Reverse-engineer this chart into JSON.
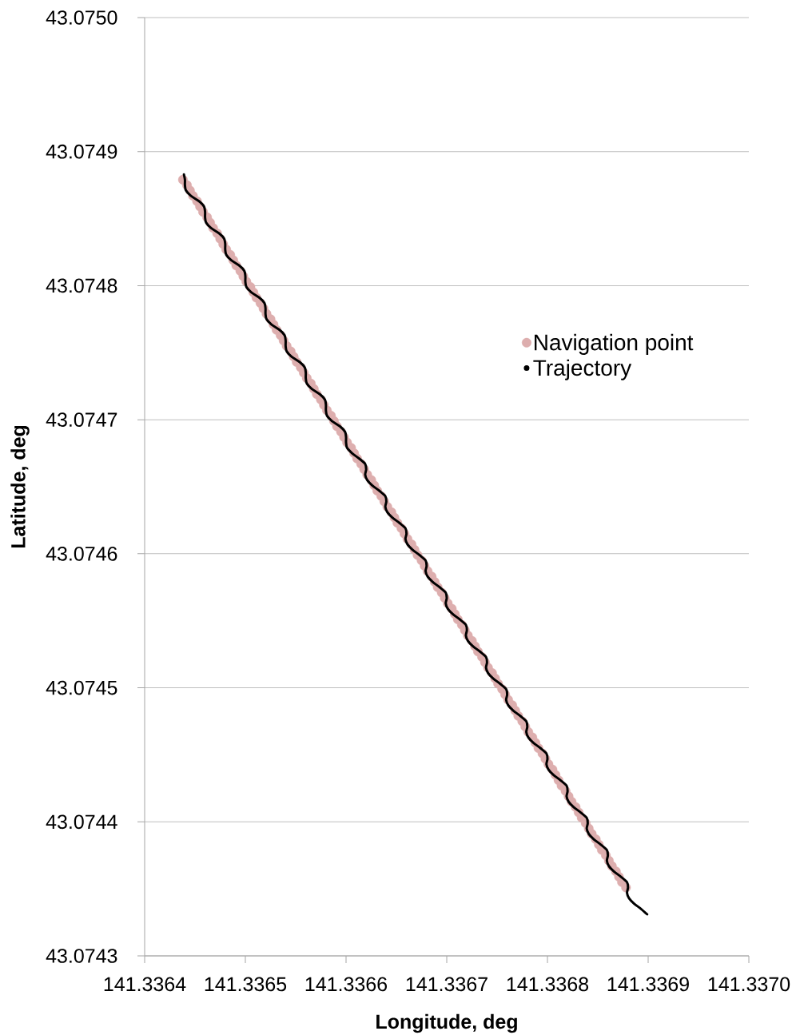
{
  "chart_data": {
    "type": "scatter",
    "xlabel": "Longitude, deg",
    "ylabel": "Latitude, deg",
    "xlim": [
      141.3364,
      141.337
    ],
    "ylim": [
      43.0743,
      43.075
    ],
    "xticks": [
      141.3364,
      141.3365,
      141.3366,
      141.3367,
      141.3368,
      141.3369,
      {
        "value": 141.337,
        "label": "141.3370"
      }
    ],
    "yticks": [
      43.0743,
      43.0744,
      43.0745,
      43.0746,
      43.0747,
      43.0748,
      43.0749,
      {
        "value": 43.075,
        "label": "43.0750"
      }
    ],
    "grid": "y",
    "legend": "right",
    "series": [
      {
        "name": "Navigation point",
        "marker": "circle",
        "color": "#ddaeae",
        "x": [
          141.336438,
          141.336442,
          141.336445,
          141.336448,
          141.336452,
          141.336455,
          141.336458,
          141.336462,
          141.336465,
          141.336468,
          141.336472,
          141.336475,
          141.336478,
          141.336481,
          141.336485,
          141.336488,
          141.336491,
          141.336495,
          141.336498,
          141.336501,
          141.336505,
          141.336508,
          141.336511,
          141.336515,
          141.336518,
          141.336521,
          141.336525,
          141.336528,
          141.336531,
          141.336535,
          141.336538,
          141.336541,
          141.336545,
          141.336548,
          141.336551,
          141.336555,
          141.336558,
          141.336561,
          141.336565,
          141.336568,
          141.336571,
          141.336575,
          141.336578,
          141.336581,
          141.336585,
          141.336588,
          141.336591,
          141.336595,
          141.336598,
          141.336601,
          141.336605,
          141.336608,
          141.336611,
          141.336615,
          141.336618,
          141.336621,
          141.336625,
          141.336628,
          141.336631,
          141.336635,
          141.336638,
          141.336641,
          141.336645,
          141.336648,
          141.336651,
          141.336655,
          141.336658,
          141.336661,
          141.336665,
          141.336668,
          141.336671,
          141.336675,
          141.336678,
          141.336681,
          141.336685,
          141.336688,
          141.336691,
          141.336695,
          141.336698,
          141.336701,
          141.336705,
          141.336708,
          141.336711,
          141.336715,
          141.336718,
          141.336721,
          141.336725,
          141.336728,
          141.336731,
          141.336735,
          141.336738,
          141.336741,
          141.336745,
          141.336748,
          141.336751,
          141.336755,
          141.336758,
          141.336761,
          141.336765,
          141.336768,
          141.336771,
          141.336775,
          141.336778,
          141.336781,
          141.336785,
          141.336788,
          141.336791,
          141.336795,
          141.336798,
          141.336801,
          141.336805,
          141.336808,
          141.336811,
          141.336814,
          141.336818,
          141.336821,
          141.336824,
          141.336828,
          141.336831,
          141.336834,
          141.336838,
          141.336841,
          141.336844,
          141.336848,
          141.336851,
          141.336854,
          141.336858,
          141.336861,
          141.336864,
          141.336868,
          141.336871,
          141.336874,
          141.336878
        ],
        "values": [
          43.074879,
          43.074875,
          43.074871,
          43.074867,
          43.074863,
          43.074859,
          43.074855,
          43.074851,
          43.074847,
          43.074843,
          43.074839,
          43.074835,
          43.074831,
          43.074827,
          43.074823,
          43.074819,
          43.074815,
          43.074811,
          43.074807,
          43.074803,
          43.074799,
          43.074795,
          43.074791,
          43.074787,
          43.074783,
          43.074779,
          43.074775,
          43.074771,
          43.074767,
          43.074763,
          43.074759,
          43.074755,
          43.074751,
          43.074747,
          43.074743,
          43.074739,
          43.074735,
          43.074731,
          43.074727,
          43.074723,
          43.074719,
          43.074715,
          43.074711,
          43.074707,
          43.074703,
          43.074699,
          43.074695,
          43.074691,
          43.074687,
          43.074683,
          43.074679,
          43.074675,
          43.074671,
          43.074667,
          43.074663,
          43.074659,
          43.074655,
          43.074651,
          43.074647,
          43.074643,
          43.074639,
          43.074635,
          43.074631,
          43.074627,
          43.074623,
          43.074619,
          43.074615,
          43.074611,
          43.074607,
          43.074603,
          43.074599,
          43.074595,
          43.074591,
          43.074587,
          43.074583,
          43.074579,
          43.074575,
          43.074571,
          43.074567,
          43.074563,
          43.074559,
          43.074555,
          43.074551,
          43.074547,
          43.074543,
          43.074539,
          43.074535,
          43.074531,
          43.074527,
          43.074523,
          43.074519,
          43.074515,
          43.074511,
          43.074507,
          43.074503,
          43.074499,
          43.074495,
          43.074491,
          43.074487,
          43.074483,
          43.074479,
          43.074475,
          43.074471,
          43.074467,
          43.074463,
          43.074459,
          43.074455,
          43.074451,
          43.074447,
          43.074443,
          43.074439,
          43.074435,
          43.074431,
          43.074427,
          43.074423,
          43.074419,
          43.074415,
          43.074411,
          43.074407,
          43.074403,
          43.074399,
          43.074395,
          43.074391,
          43.074387,
          43.074383,
          43.074379,
          43.074375,
          43.074371,
          43.074367,
          43.074363,
          43.074359,
          43.074355,
          43.074351
        ]
      },
      {
        "name": "Trajectory",
        "type": "line",
        "line_style": "solid",
        "color": "#000000",
        "x": [
          141.336439,
          141.33644,
          141.33644,
          141.336441,
          141.336446,
          141.336454,
          141.336459,
          141.33646,
          141.33646,
          141.336461,
          141.336466,
          141.336474,
          141.336479,
          141.33648,
          141.33648,
          141.336481,
          141.336486,
          141.336494,
          141.336499,
          141.3365,
          141.3365,
          141.336501,
          141.336506,
          141.336514,
          141.336519,
          141.33652,
          141.33652,
          141.336521,
          141.336526,
          141.336534,
          141.336539,
          141.33654,
          141.33654,
          141.336541,
          141.336546,
          141.336554,
          141.336559,
          141.33656,
          141.33656,
          141.336561,
          141.336566,
          141.336574,
          141.336579,
          141.33658,
          141.33658,
          141.336581,
          141.336586,
          141.336594,
          141.336599,
          141.3366,
          141.3366,
          141.336601,
          141.336606,
          141.336613,
          141.336619,
          141.33662,
          141.336619,
          141.336621,
          141.336626,
          141.336633,
          141.336639,
          141.33664,
          141.336639,
          141.336641,
          141.336646,
          141.336653,
          141.336659,
          141.33666,
          141.336659,
          141.336661,
          141.336666,
          141.336673,
          141.336679,
          141.33668,
          141.336679,
          141.336681,
          141.336686,
          141.336693,
          141.336699,
          141.3367,
          141.336699,
          141.336701,
          141.336706,
          141.336713,
          141.336719,
          141.33672,
          141.336719,
          141.336721,
          141.336726,
          141.336733,
          141.336739,
          141.33674,
          141.336739,
          141.336741,
          141.336746,
          141.336753,
          141.336759,
          141.33676,
          141.336759,
          141.336761,
          141.336766,
          141.336773,
          141.336779,
          141.33678,
          141.336779,
          141.336781,
          141.336786,
          141.336793,
          141.336799,
          141.3368,
          141.336799,
          141.336801,
          141.336806,
          141.336813,
          141.336819,
          141.33682,
          141.336819,
          141.336821,
          141.336826,
          141.336833,
          141.336839,
          141.33684,
          141.336839,
          141.336841,
          141.336846,
          141.336853,
          141.336859,
          141.33686,
          141.336859,
          141.336861,
          141.336866,
          141.336873,
          141.336879,
          141.33688,
          141.336879,
          141.336881,
          141.336886,
          141.336893,
          141.336899
        ],
        "values": [
          43.074883,
          43.074879,
          43.074875,
          43.074871,
          43.074867,
          43.074863,
          43.074859,
          43.074855,
          43.074851,
          43.074847,
          43.074843,
          43.074839,
          43.074835,
          43.074831,
          43.074827,
          43.074823,
          43.074819,
          43.074815,
          43.074811,
          43.074807,
          43.074803,
          43.074799,
          43.074795,
          43.074791,
          43.074787,
          43.074783,
          43.074779,
          43.074775,
          43.074771,
          43.074767,
          43.074763,
          43.074759,
          43.074755,
          43.074751,
          43.074747,
          43.074743,
          43.074739,
          43.074735,
          43.074731,
          43.074727,
          43.074723,
          43.074719,
          43.074715,
          43.074711,
          43.074707,
          43.074703,
          43.074699,
          43.074695,
          43.074691,
          43.074687,
          43.074683,
          43.074679,
          43.074675,
          43.074671,
          43.074667,
          43.074663,
          43.074659,
          43.074655,
          43.074651,
          43.074647,
          43.074643,
          43.074639,
          43.074635,
          43.074631,
          43.074627,
          43.074623,
          43.074619,
          43.074615,
          43.074611,
          43.074607,
          43.074603,
          43.074599,
          43.074595,
          43.074591,
          43.074587,
          43.074583,
          43.074579,
          43.074575,
          43.074571,
          43.074567,
          43.074563,
          43.074559,
          43.074555,
          43.074551,
          43.074547,
          43.074543,
          43.074539,
          43.074535,
          43.074531,
          43.074527,
          43.074523,
          43.074519,
          43.074515,
          43.074511,
          43.074507,
          43.074503,
          43.074499,
          43.074495,
          43.074491,
          43.074487,
          43.074483,
          43.074479,
          43.074475,
          43.074471,
          43.074467,
          43.074463,
          43.074459,
          43.074455,
          43.074451,
          43.074447,
          43.074443,
          43.074439,
          43.074435,
          43.074431,
          43.074427,
          43.074423,
          43.074419,
          43.074415,
          43.074411,
          43.074407,
          43.074403,
          43.074399,
          43.074395,
          43.074391,
          43.074387,
          43.074383,
          43.074379,
          43.074375,
          43.074371,
          43.074367,
          43.074363,
          43.074359,
          43.074355,
          43.074351,
          43.074347,
          43.074343,
          43.074339,
          43.074335,
          43.074331
        ]
      }
    ]
  }
}
